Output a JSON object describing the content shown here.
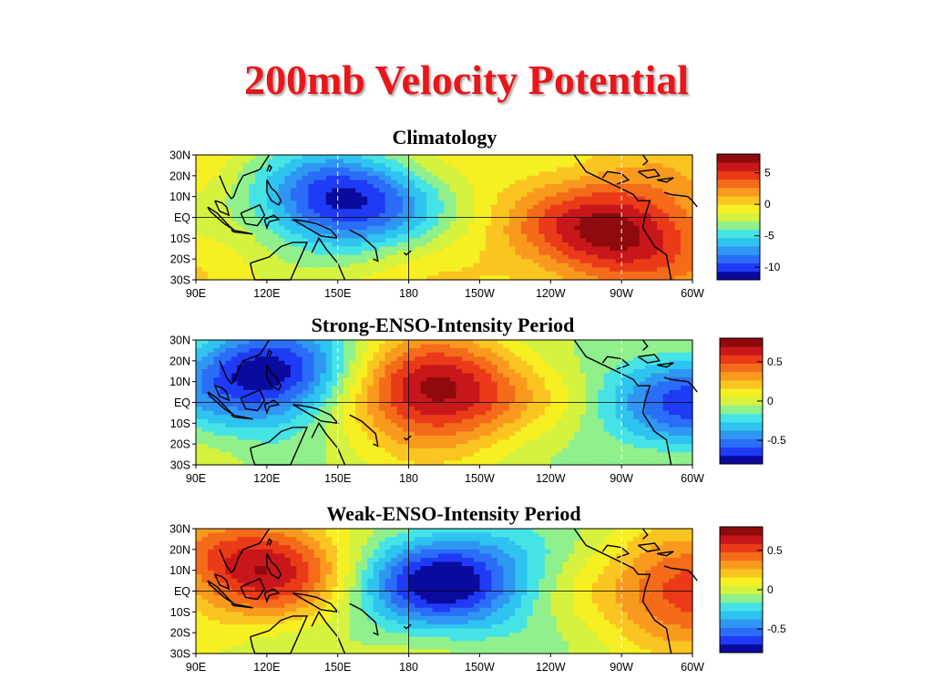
{
  "slide_title": "200mb Velocity Potential",
  "chart_data": [
    {
      "type": "heatmap",
      "title": "Climatology",
      "x_tick_labels": [
        "90E",
        "120E",
        "150E",
        "180",
        "150W",
        "120W",
        "90W",
        "60W"
      ],
      "x_range": [
        90,
        300
      ],
      "y_tick_labels": [
        "30N",
        "20N",
        "10N",
        "EQ",
        "10S",
        "20S",
        "30S"
      ],
      "y_range": [
        30,
        -30
      ],
      "colorbar": {
        "labels": [
          "5",
          "0",
          "-5",
          "-10"
        ],
        "range": [
          -12,
          8
        ],
        "label_values": [
          5,
          0,
          -5,
          -10
        ]
      },
      "centers": [
        {
          "lon": 152,
          "lat": 8,
          "value": -11
        },
        {
          "lon": 268,
          "lat": -7,
          "value": 8
        }
      ],
      "gridlines": "EQ and 180 solid, 150E and 90W dashed"
    },
    {
      "type": "heatmap",
      "title": "Strong-ENSO-Intensity Period",
      "x_tick_labels": [
        "90E",
        "120E",
        "150E",
        "180",
        "150W",
        "120W",
        "90W",
        "60W"
      ],
      "x_range": [
        90,
        300
      ],
      "y_tick_labels": [
        "30N",
        "20N",
        "10N",
        "EQ",
        "10S",
        "20S",
        "30S"
      ],
      "y_range": [
        30,
        -30
      ],
      "colorbar": {
        "labels": [
          "0.5",
          "0",
          "-0.5"
        ],
        "range": [
          -0.8,
          0.8
        ],
        "label_values": [
          0.5,
          0,
          -0.5
        ]
      },
      "centers": [
        {
          "lon": 120,
          "lat": 12,
          "value": -0.8
        },
        {
          "lon": 190,
          "lat": 5,
          "value": 0.8
        },
        {
          "lon": 300,
          "lat": 0,
          "value": -0.6
        }
      ],
      "gridlines": "EQ and 180 solid, 150E and 90W dashed"
    },
    {
      "type": "heatmap",
      "title": "Weak-ENSO-Intensity Period",
      "x_tick_labels": [
        "90E",
        "120E",
        "150E",
        "180",
        "150W",
        "120W",
        "90W",
        "60W"
      ],
      "x_range": [
        90,
        300
      ],
      "y_tick_labels": [
        "30N",
        "20N",
        "10N",
        "EQ",
        "10S",
        "20S",
        "30S"
      ],
      "y_range": [
        30,
        -30
      ],
      "colorbar": {
        "labels": [
          "0.5",
          "0",
          "-0.5"
        ],
        "range": [
          -0.8,
          0.8
        ],
        "label_values": [
          0.5,
          0,
          -0.5
        ]
      },
      "centers": [
        {
          "lon": 118,
          "lat": 12,
          "value": 0.7
        },
        {
          "lon": 195,
          "lat": 5,
          "value": -0.8
        },
        {
          "lon": 300,
          "lat": 0,
          "value": 0.6
        }
      ],
      "gridlines": "EQ and 180 solid, 150E and 90W dashed"
    }
  ],
  "colors": {
    "title": "#e8161b",
    "palette": [
      "#0b0a9e",
      "#1f3bf5",
      "#2a6ef8",
      "#2f97f2",
      "#2fc3f0",
      "#45e3e6",
      "#8ff08c",
      "#d4f23e",
      "#f6ef22",
      "#fbc521",
      "#f99a1e",
      "#f46b19",
      "#ea3a18",
      "#c8171a",
      "#8e0a0c"
    ]
  }
}
